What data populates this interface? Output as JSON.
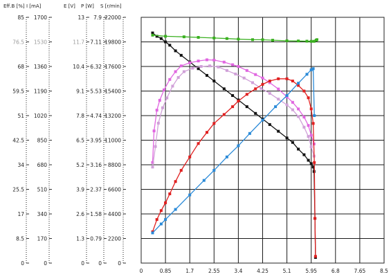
{
  "chart_data": {
    "type": "line",
    "axes": [
      {
        "id": "eff",
        "label": "Eff.B [%]",
        "ticks": [
          "85",
          "76.5",
          "68",
          "59.5",
          "51",
          "42.5",
          "34",
          "25.5",
          "17",
          "8.5",
          "0"
        ],
        "range": [
          0,
          85
        ],
        "muted_tick_index": 1
      },
      {
        "id": "i",
        "label": "I [mA]",
        "ticks": [
          "1700",
          "1530",
          "1360",
          "1190",
          "1020",
          "850",
          "680",
          "510",
          "340",
          "170",
          "0"
        ],
        "range": [
          0,
          1700
        ],
        "muted_tick_index": 1
      },
      {
        "id": "e",
        "label": "E [V]",
        "ticks": [
          "13",
          "11.7",
          "10.4",
          "9.1",
          "7.8",
          "6.5",
          "5.2",
          "3.9",
          "2.6",
          "1.3",
          "0"
        ],
        "range": [
          0,
          13
        ],
        "muted_tick_index": 1
      },
      {
        "id": "p",
        "label": "P [W]",
        "ticks": [
          "7.9",
          "7.11",
          "6.32",
          "5.53",
          "4.74",
          "3.95",
          "3.16",
          "2.37",
          "1.58",
          "0.79",
          "0"
        ],
        "range": [
          0,
          7.9
        ],
        "muted_tick_index": -1
      },
      {
        "id": "s",
        "label": "S [r/min]",
        "ticks": [
          "22000",
          "19800",
          "17600",
          "15400",
          "13200",
          "11000",
          "8800",
          "6600",
          "4400",
          "2200",
          "0"
        ],
        "range": [
          0,
          22000
        ],
        "muted_tick_index": -1
      }
    ],
    "x": {
      "ticks": [
        "0",
        "0.85",
        "1.7",
        "2.55",
        "3.4",
        "4.25",
        "5.1",
        "5.95",
        "6.8",
        "7.65",
        "8.5"
      ],
      "range": [
        0,
        8.5
      ]
    },
    "grid": true,
    "series": [
      {
        "axis": "s",
        "color": "#111111",
        "points": [
          [
            0.4,
            20600
          ],
          [
            0.55,
            20300
          ],
          [
            0.7,
            20100
          ],
          [
            0.85,
            19800
          ],
          [
            1.0,
            19500
          ],
          [
            1.2,
            19000
          ],
          [
            1.4,
            18600
          ],
          [
            1.7,
            18000
          ],
          [
            2.0,
            17400
          ],
          [
            2.3,
            16800
          ],
          [
            2.55,
            16300
          ],
          [
            2.9,
            15600
          ],
          [
            3.2,
            15000
          ],
          [
            3.4,
            14600
          ],
          [
            3.7,
            14000
          ],
          [
            4.0,
            13400
          ],
          [
            4.25,
            12900
          ],
          [
            4.5,
            12400
          ],
          [
            4.8,
            11800
          ],
          [
            5.1,
            11200
          ],
          [
            5.3,
            10800
          ],
          [
            5.5,
            10200
          ],
          [
            5.7,
            9700
          ],
          [
            5.85,
            9200
          ],
          [
            5.95,
            8900
          ],
          [
            6.02,
            8600
          ],
          [
            6.05,
            8200
          ],
          [
            6.08,
            4000
          ],
          [
            6.1,
            500
          ]
        ]
      },
      {
        "axis": "s",
        "color": "#3ab020",
        "points": [
          [
            0.4,
            20400
          ],
          [
            0.85,
            20300
          ],
          [
            1.5,
            20250
          ],
          [
            2.0,
            20200
          ],
          [
            2.55,
            20150
          ],
          [
            3.0,
            20100
          ],
          [
            3.4,
            20050
          ],
          [
            3.9,
            20000
          ],
          [
            4.25,
            19990
          ],
          [
            4.6,
            19950
          ],
          [
            5.1,
            19900
          ],
          [
            5.5,
            19880
          ],
          [
            5.8,
            19860
          ],
          [
            5.95,
            19850
          ],
          [
            6.05,
            19850
          ],
          [
            6.12,
            19950
          ],
          [
            6.15,
            20000
          ]
        ]
      },
      {
        "axis": "eff",
        "color": "#e066e0",
        "points": [
          [
            0.4,
            34.8
          ],
          [
            0.45,
            45.7
          ],
          [
            0.55,
            52.9
          ],
          [
            0.65,
            56.3
          ],
          [
            0.8,
            59.9
          ],
          [
            1.0,
            63.5
          ],
          [
            1.2,
            66.2
          ],
          [
            1.4,
            68.2
          ],
          [
            1.7,
            69.3
          ],
          [
            2.0,
            69.9
          ],
          [
            2.3,
            70.3
          ],
          [
            2.55,
            70.2
          ],
          [
            2.9,
            69.5
          ],
          [
            3.2,
            68.6
          ],
          [
            3.4,
            68.0
          ],
          [
            3.7,
            66.6
          ],
          [
            4.0,
            65.2
          ],
          [
            4.25,
            64.0
          ],
          [
            4.5,
            62.4
          ],
          [
            4.8,
            60.2
          ],
          [
            5.1,
            57.5
          ],
          [
            5.3,
            55.6
          ],
          [
            5.5,
            53.3
          ],
          [
            5.7,
            50.5
          ],
          [
            5.85,
            47.6
          ],
          [
            5.95,
            44.2
          ],
          [
            6.05,
            41.2
          ]
        ]
      },
      {
        "axis": "eff",
        "color": "#d0a0d8",
        "points": [
          [
            0.4,
            33.2
          ],
          [
            0.5,
            40.3
          ],
          [
            0.6,
            48.4
          ],
          [
            0.75,
            53.7
          ],
          [
            0.9,
            57.1
          ],
          [
            1.1,
            61.2
          ],
          [
            1.3,
            64.2
          ],
          [
            1.5,
            66.2
          ],
          [
            1.8,
            67.4
          ],
          [
            2.1,
            68.0
          ],
          [
            2.4,
            68.2
          ],
          [
            2.7,
            67.8
          ],
          [
            3.0,
            66.6
          ],
          [
            3.3,
            65.4
          ],
          [
            3.6,
            64.0
          ],
          [
            3.9,
            62.4
          ],
          [
            4.2,
            60.4
          ],
          [
            4.5,
            58.7
          ],
          [
            4.8,
            56.7
          ],
          [
            5.1,
            54.7
          ],
          [
            5.3,
            53.0
          ],
          [
            5.5,
            50.7
          ],
          [
            5.7,
            47.0
          ],
          [
            5.85,
            43.8
          ],
          [
            5.95,
            40.2
          ],
          [
            6.05,
            37.0
          ]
        ]
      },
      {
        "axis": "s",
        "color": "#e02020",
        "points": [
          [
            0.4,
            2800
          ],
          [
            0.55,
            3900
          ],
          [
            0.7,
            4700
          ],
          [
            0.85,
            5400
          ],
          [
            1.0,
            6200
          ],
          [
            1.2,
            7300
          ],
          [
            1.4,
            8300
          ],
          [
            1.7,
            9500
          ],
          [
            2.0,
            10700
          ],
          [
            2.3,
            11700
          ],
          [
            2.55,
            12500
          ],
          [
            2.9,
            13300
          ],
          [
            3.2,
            14000
          ],
          [
            3.4,
            14500
          ],
          [
            3.7,
            15100
          ],
          [
            4.0,
            15600
          ],
          [
            4.25,
            16000
          ],
          [
            4.5,
            16300
          ],
          [
            4.8,
            16500
          ],
          [
            5.1,
            16500
          ],
          [
            5.3,
            16300
          ],
          [
            5.5,
            15900
          ],
          [
            5.7,
            15400
          ],
          [
            5.85,
            14800
          ],
          [
            5.95,
            13800
          ],
          [
            6.02,
            12500
          ],
          [
            6.06,
            9000
          ],
          [
            6.08,
            4000
          ],
          [
            6.1,
            600
          ]
        ]
      },
      {
        "axis": "s",
        "color": "#2a8ad8",
        "points": [
          [
            0.4,
            2700
          ],
          [
            0.7,
            3500
          ],
          [
            0.85,
            3900
          ],
          [
            1.2,
            4800
          ],
          [
            1.7,
            6100
          ],
          [
            2.2,
            7400
          ],
          [
            2.55,
            8300
          ],
          [
            3.0,
            9500
          ],
          [
            3.4,
            10500
          ],
          [
            3.8,
            11600
          ],
          [
            4.25,
            12800
          ],
          [
            4.7,
            14000
          ],
          [
            5.1,
            15000
          ],
          [
            5.5,
            16100
          ],
          [
            5.8,
            16900
          ],
          [
            5.95,
            17300
          ],
          [
            6.02,
            17400
          ],
          [
            6.06,
            13200
          ]
        ]
      }
    ]
  }
}
